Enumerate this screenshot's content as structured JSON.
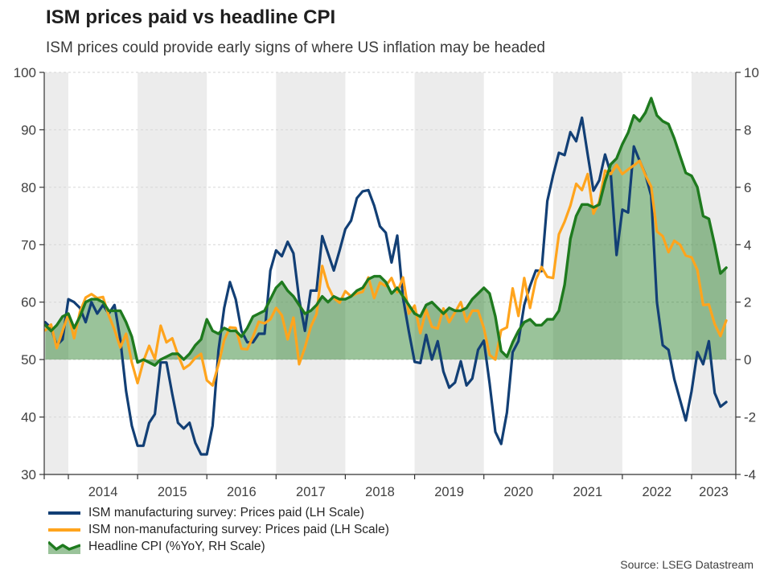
{
  "header": {
    "title": "ISM prices paid vs headline CPI",
    "subtitle": "ISM prices could provide early signs of where US inflation may be headed"
  },
  "footer": {
    "source": "Source: LSEG Datastream"
  },
  "chart_data": {
    "type": "line",
    "title": "ISM prices paid vs headline CPI",
    "subtitle": "ISM prices could provide early signs of where US inflation may be headed",
    "x_frequency": "monthly",
    "x_start": "2013-09",
    "x_end": "2023-07",
    "x_tick_labels": [
      "2014",
      "2015",
      "2016",
      "2017",
      "2018",
      "2019",
      "2020",
      "2021",
      "2022",
      "2023"
    ],
    "left_axis": {
      "min": 30,
      "max": 100,
      "ticks": [
        100,
        90,
        80,
        70,
        60,
        50,
        40,
        30
      ]
    },
    "right_axis": {
      "min": -4,
      "max": 10,
      "ticks": [
        10,
        8,
        6,
        4,
        2,
        0,
        -2,
        -4
      ]
    },
    "grid": true,
    "legend_position": "bottom-left",
    "style": {
      "band_color": "#ececec",
      "grid_color": "#d6d6d6",
      "axis_color": "#333333",
      "label_color": "#404040"
    },
    "series": [
      {
        "name": "ISM manufacturing survey: Prices paid (LH Scale)",
        "axis": "left",
        "color": "#123f75",
        "values": [
          56.5,
          55.5,
          52.5,
          53.5,
          60.5,
          60,
          59,
          56.5,
          60,
          58,
          59.5,
          58,
          59.5,
          53.5,
          44.5,
          38.5,
          35,
          35,
          39,
          40.5,
          49.5,
          49.5,
          44,
          39,
          38,
          39,
          35.5,
          33.5,
          33.5,
          38.5,
          51.5,
          59,
          63.5,
          60.5,
          55,
          53,
          53,
          54.5,
          54.5,
          65.5,
          69,
          68,
          70.5,
          68.5,
          60.5,
          55,
          62,
          62,
          71.5,
          68.5,
          65.5,
          69,
          72.7,
          74.2,
          78.1,
          79.3,
          79.5,
          76.8,
          73.2,
          72.1,
          66.9,
          71.6,
          60.7,
          54.9,
          49.6,
          49.4,
          54.3,
          50,
          53.2,
          47.9,
          45.1,
          46,
          49.7,
          45.5,
          46.7,
          51.7,
          53.3,
          45.9,
          37.4,
          35.3,
          40.8,
          51.3,
          53.2,
          59.5,
          62.8,
          65.5,
          65.4,
          77.6,
          82.1,
          86,
          85.6,
          89.6,
          88,
          92.1,
          85.7,
          79.4,
          81.2,
          85.7,
          82.4,
          68.2,
          76.1,
          75.6,
          87.1,
          84.6,
          82.2,
          78.5,
          60,
          52.5,
          51.7,
          46.6,
          43,
          39.4,
          44.5,
          51.3,
          49.2,
          53.2,
          44.2,
          41.8,
          42.6
        ]
      },
      {
        "name": "ISM non-manufacturing survey: Prices paid (LH Scale)",
        "axis": "left",
        "color": "#ffa41d",
        "values": [
          55.1,
          56.1,
          52,
          55,
          57.9,
          53.7,
          58.3,
          60.8,
          61.4,
          60.7,
          60.9,
          57.7,
          55.2,
          52.1,
          54.5,
          49.5,
          45.9,
          49.7,
          52.4,
          50.1,
          55.9,
          53,
          53.7,
          50.8,
          48.4,
          49.1,
          50.3,
          51,
          46.4,
          45.5,
          49.1,
          53.4,
          55.6,
          55.5,
          51.9,
          51.8,
          54,
          56.6,
          56.3,
          57,
          59,
          57.7,
          53.5,
          57.3,
          49.2,
          52.1,
          55.7,
          57.9,
          66.3,
          62.7,
          60.7,
          59.9,
          61.9,
          61,
          61.5,
          61.8,
          64.3,
          60.7,
          63.4,
          62.8,
          64.2,
          61.7,
          64.3,
          58,
          59.4,
          54.6,
          58.7,
          55.7,
          55.4,
          58.9,
          56.5,
          58.2,
          60,
          56.6,
          58.5,
          58.5,
          55.5,
          50.8,
          50,
          55.1,
          55.6,
          62.4,
          57.6,
          64.2,
          59,
          63.9,
          66.1,
          64.4,
          64.2,
          71.8,
          74,
          76.8,
          80.6,
          79.5,
          82.3,
          75.4,
          77.5,
          82.9,
          82.3,
          83.9,
          82.3,
          83.1,
          83.8,
          84.6,
          82.1,
          80.1,
          72.3,
          71.5,
          68.7,
          70.7,
          70,
          68.1,
          67.8,
          65.6,
          59.5,
          59.6,
          56.2,
          54.1,
          56.8
        ]
      },
      {
        "name": "Headline CPI (%YoY, RH Scale)",
        "axis": "right",
        "color": "#1e7a1e",
        "fill": true,
        "fill_opacity": 0.45,
        "fill_baseline": 0,
        "values": [
          1.2,
          1,
          1.2,
          1.5,
          1.6,
          1.1,
          1.5,
          2,
          2.1,
          2.1,
          2,
          1.7,
          1.7,
          1.7,
          1.3,
          0.8,
          -0.1,
          0,
          -0.1,
          -0.2,
          0,
          0.1,
          0.2,
          0.2,
          0,
          0.2,
          0.5,
          0.7,
          1.4,
          1,
          0.9,
          1.1,
          1,
          1,
          0.8,
          1.1,
          1.5,
          1.6,
          1.7,
          2.1,
          2.5,
          2.7,
          2.4,
          2.2,
          1.9,
          1.6,
          1.7,
          1.9,
          2.2,
          2,
          2.2,
          2.1,
          2.1,
          2.2,
          2.4,
          2.5,
          2.8,
          2.9,
          2.9,
          2.7,
          2.3,
          2.5,
          2.2,
          1.9,
          1.6,
          1.5,
          1.9,
          2,
          1.8,
          1.6,
          1.8,
          1.7,
          1.7,
          1.8,
          2.1,
          2.3,
          2.5,
          2.3,
          1.5,
          0.3,
          0.1,
          0.6,
          1,
          1.3,
          1.4,
          1.2,
          1.2,
          1.4,
          1.4,
          1.7,
          2.6,
          4.2,
          5,
          5.4,
          5.4,
          5.3,
          5.4,
          6.2,
          6.8,
          7,
          7.5,
          7.9,
          8.5,
          8.3,
          8.6,
          9.1,
          8.5,
          8.3,
          8.2,
          7.7,
          7.1,
          6.5,
          6.4,
          6,
          5,
          4.9,
          4,
          3,
          3.2
        ]
      }
    ]
  }
}
